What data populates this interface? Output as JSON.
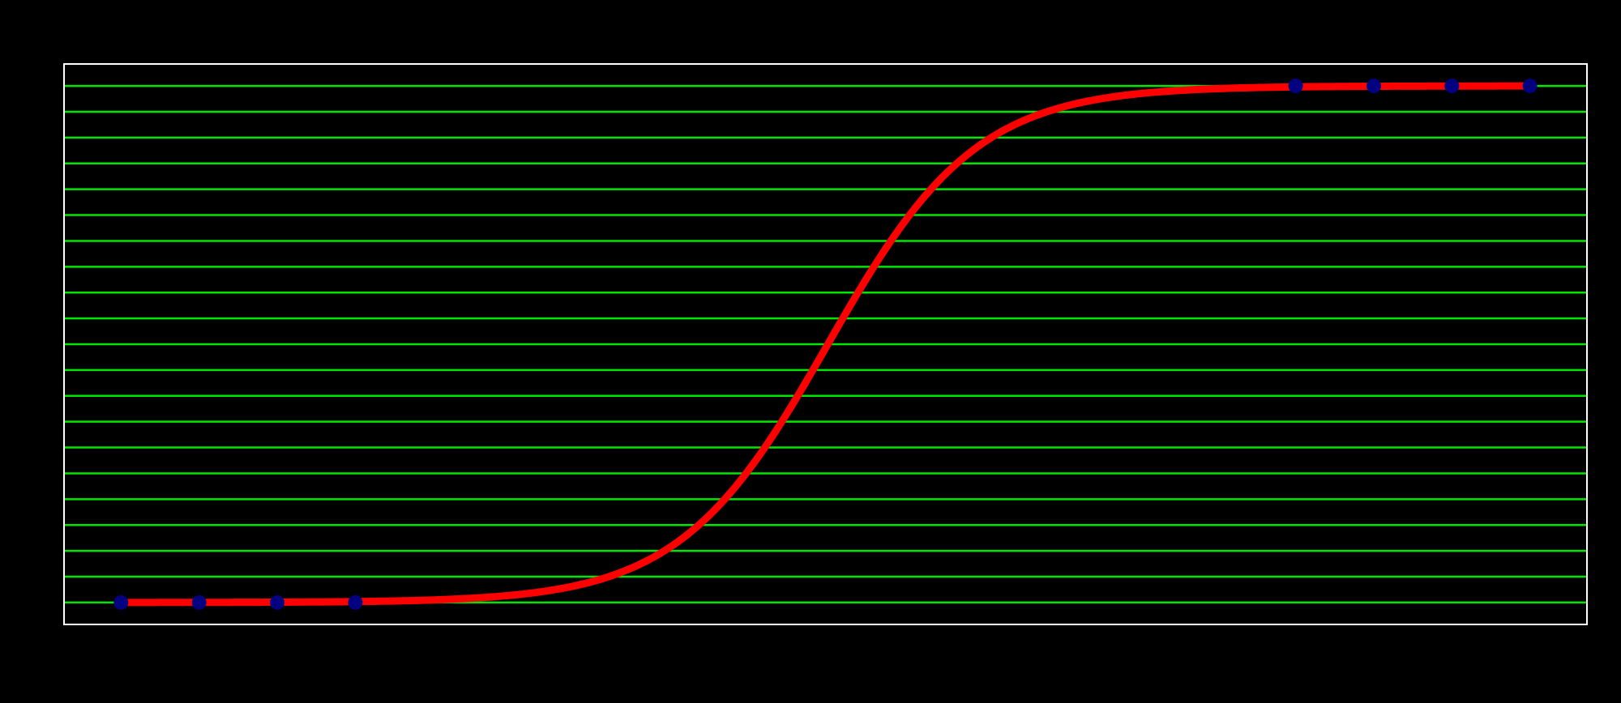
{
  "chart_data": {
    "type": "scatter",
    "title": "",
    "xlabel": "",
    "ylabel": "",
    "xlim": [
      0,
      19.5
    ],
    "ylim": [
      -0.85,
      20.85
    ],
    "grid": {
      "x": false,
      "y": true
    },
    "grid_y_values": [
      0,
      1,
      2,
      3,
      4,
      5,
      6,
      7,
      8,
      9,
      10,
      11,
      12,
      13,
      14,
      15,
      16,
      17,
      18,
      19,
      20
    ],
    "series": [
      {
        "kind": "points",
        "x": [
          0.73,
          1.73,
          2.73,
          3.73,
          15.77,
          16.77,
          17.77,
          18.77
        ],
        "y": [
          0,
          0,
          0,
          0,
          20,
          20,
          20,
          20
        ]
      },
      {
        "kind": "fit-curve",
        "curve": "logistic",
        "lower": 0,
        "upper": 20,
        "midpoint": 9.78,
        "slope": 1.05,
        "x_range": [
          0.73,
          18.77
        ]
      }
    ],
    "colors": {
      "background": "#000000",
      "plot_border": "#ffffff",
      "grid": "#00e600",
      "curve": "#ff0000",
      "points": "#000080"
    }
  }
}
